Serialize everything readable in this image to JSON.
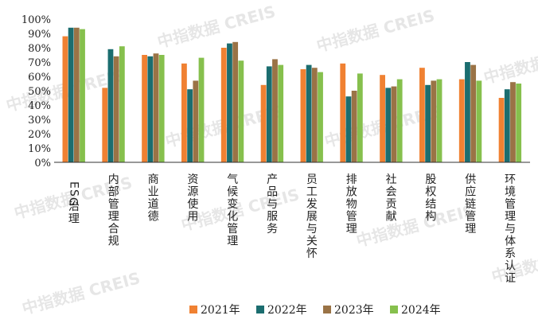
{
  "watermark": "中指数据 CREIS",
  "chart_data": {
    "type": "bar",
    "categories": [
      "ESG治理",
      "内部管理合规",
      "商业道德",
      "资源使用",
      "气候变化管理",
      "产品与服务",
      "员工发展与关怀",
      "排放物管理",
      "社会贡献",
      "股权结构",
      "供应链管理",
      "环境管理与体系认证"
    ],
    "series": [
      {
        "name": "2021年",
        "color": "#f08132",
        "values": [
          88,
          52,
          75,
          69,
          80,
          54,
          65,
          69,
          61,
          66,
          58,
          45
        ]
      },
      {
        "name": "2022年",
        "color": "#1b6d6f",
        "values": [
          94,
          79,
          74,
          51,
          83,
          67,
          68,
          46,
          52,
          54,
          70,
          51
        ]
      },
      {
        "name": "2023年",
        "color": "#9a7346",
        "values": [
          94,
          74,
          76,
          57,
          84,
          72,
          66,
          50,
          53,
          57,
          68,
          56
        ]
      },
      {
        "name": "2024年",
        "color": "#86c04d",
        "values": [
          93,
          81,
          75,
          73,
          71,
          68,
          63,
          62,
          58,
          58,
          57,
          55
        ]
      }
    ],
    "ylim": [
      0,
      100
    ],
    "yticks": [
      "0%",
      "10%",
      "20%",
      "30%",
      "40%",
      "50%",
      "60%",
      "70%",
      "80%",
      "90%",
      "100%"
    ],
    "legend_position": "bottom",
    "grid": false
  }
}
